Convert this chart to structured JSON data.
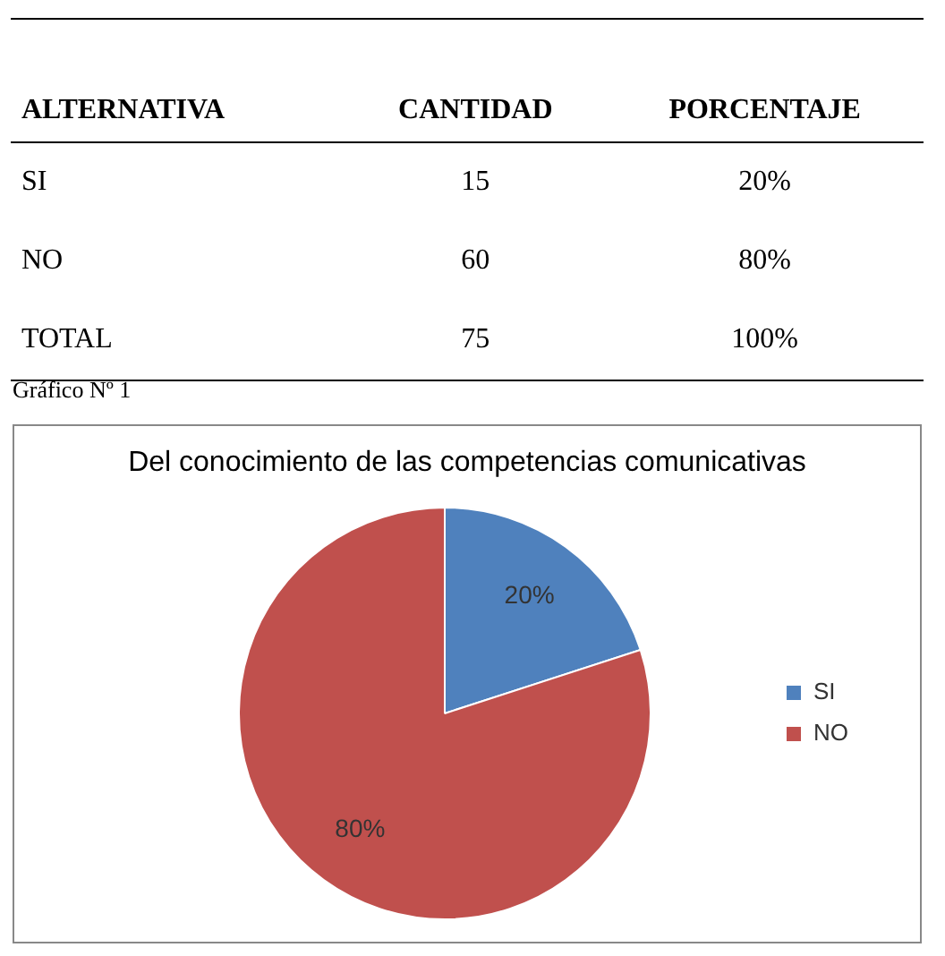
{
  "chart_data": [
    {
      "type": "other",
      "xlabel": "ALTERNATIVA",
      "categories": [
        "SI",
        "NO",
        "TOTAL"
      ],
      "data_labels": true,
      "series": [
        {
          "name": "CANTIDAD",
          "values": [
            15,
            60,
            75
          ]
        },
        {
          "name": "PORCENTAJE",
          "values": [
            20,
            80,
            100
          ],
          "value_labels": [
            "20%",
            "80%",
            "100%"
          ]
        }
      ]
    },
    {
      "type": "pie",
      "title": "Del conocimiento de las competencias comunicativas",
      "annotations": [
        "Gráfico Nº 1"
      ],
      "categories": [
        "SI",
        "NO"
      ],
      "values": [
        20,
        80
      ],
      "colors": [
        "#4f81bd",
        "#c0504d"
      ],
      "value_labels": [
        "20%",
        "80%"
      ],
      "legend": "right"
    }
  ]
}
